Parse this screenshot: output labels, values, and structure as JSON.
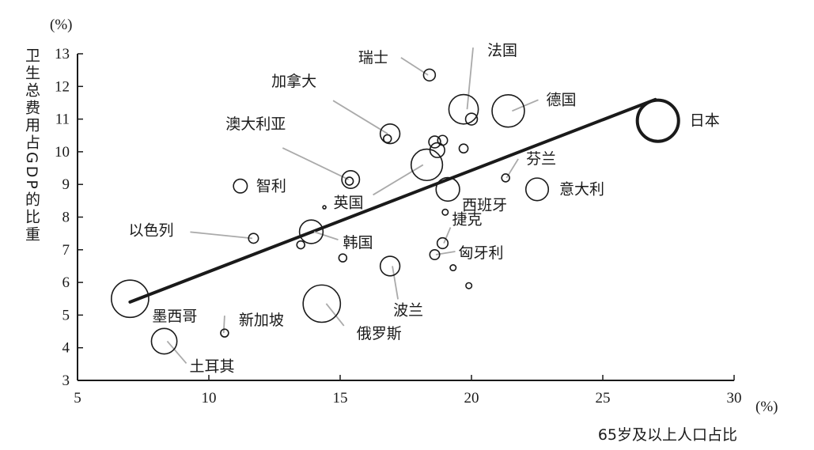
{
  "chart_data": {
    "type": "scatter",
    "title": "",
    "x_unit": "(%)",
    "y_unit": "(%)",
    "xlabel": "65岁及以上人口占比",
    "ylabel": "卫生总费用占GDP的比重",
    "xlim": [
      5,
      30
    ],
    "ylim": [
      3,
      13
    ],
    "x_ticks": [
      5,
      10,
      15,
      20,
      25,
      30
    ],
    "y_ticks": [
      3,
      4,
      5,
      6,
      7,
      8,
      9,
      10,
      11,
      12,
      13
    ],
    "trend_line": {
      "from": [
        7.0,
        5.4
      ],
      "to": [
        27.0,
        11.6
      ]
    },
    "points": [
      {
        "label": "瑞士",
        "x": 18.4,
        "y": 12.35,
        "r": 1.2
      },
      {
        "label": "法国",
        "x": 19.7,
        "y": 11.3,
        "r": 3.0
      },
      {
        "label": "",
        "x": 20.0,
        "y": 11.0,
        "r": 1.2
      },
      {
        "label": "德国",
        "x": 21.4,
        "y": 11.25,
        "r": 3.3
      },
      {
        "label": "日本",
        "x": 27.1,
        "y": 10.95,
        "r": 4.2
      },
      {
        "label": "加拿大",
        "x": 16.9,
        "y": 10.55,
        "r": 2.0
      },
      {
        "label": "",
        "x": 16.8,
        "y": 10.4,
        "r": 0.8
      },
      {
        "label": "",
        "x": 18.6,
        "y": 10.3,
        "r": 1.2
      },
      {
        "label": "",
        "x": 18.9,
        "y": 10.35,
        "r": 1.0
      },
      {
        "label": "",
        "x": 18.7,
        "y": 10.05,
        "r": 1.5
      },
      {
        "label": "",
        "x": 19.7,
        "y": 10.1,
        "r": 0.9
      },
      {
        "label": "澳大利亚",
        "x": 15.4,
        "y": 9.15,
        "r": 1.8
      },
      {
        "label": "",
        "x": 15.35,
        "y": 9.1,
        "r": 0.8
      },
      {
        "label": "智利",
        "x": 11.2,
        "y": 8.95,
        "r": 1.4
      },
      {
        "label": "英国",
        "x": 18.3,
        "y": 9.6,
        "r": 3.2
      },
      {
        "label": "西班牙",
        "x": 19.1,
        "y": 8.85,
        "r": 2.4
      },
      {
        "label": "芬兰",
        "x": 21.3,
        "y": 9.2,
        "r": 0.8
      },
      {
        "label": "意大利",
        "x": 22.5,
        "y": 8.85,
        "r": 2.3
      },
      {
        "label": "",
        "x": 14.4,
        "y": 8.3,
        "r": 0.3
      },
      {
        "label": "",
        "x": 19.0,
        "y": 8.15,
        "r": 0.6
      },
      {
        "label": "以色列",
        "x": 11.7,
        "y": 7.35,
        "r": 1.0
      },
      {
        "label": "韩国",
        "x": 13.9,
        "y": 7.55,
        "r": 2.4
      },
      {
        "label": "",
        "x": 13.5,
        "y": 7.15,
        "r": 0.8
      },
      {
        "label": "捷克",
        "x": 18.9,
        "y": 7.2,
        "r": 1.1
      },
      {
        "label": "匈牙利",
        "x": 18.6,
        "y": 6.85,
        "r": 1.0
      },
      {
        "label": "",
        "x": 15.1,
        "y": 6.75,
        "r": 0.8
      },
      {
        "label": "波兰",
        "x": 16.9,
        "y": 6.5,
        "r": 2.0
      },
      {
        "label": "",
        "x": 19.3,
        "y": 6.45,
        "r": 0.6
      },
      {
        "label": "",
        "x": 19.9,
        "y": 5.9,
        "r": 0.6
      },
      {
        "label": "墨西哥",
        "x": 7.0,
        "y": 5.5,
        "r": 3.8
      },
      {
        "label": "俄罗斯",
        "x": 14.3,
        "y": 5.35,
        "r": 3.8
      },
      {
        "label": "新加坡",
        "x": 10.6,
        "y": 4.45,
        "r": 0.8
      },
      {
        "label": "土耳其",
        "x": 8.3,
        "y": 4.2,
        "r": 2.6
      }
    ]
  }
}
